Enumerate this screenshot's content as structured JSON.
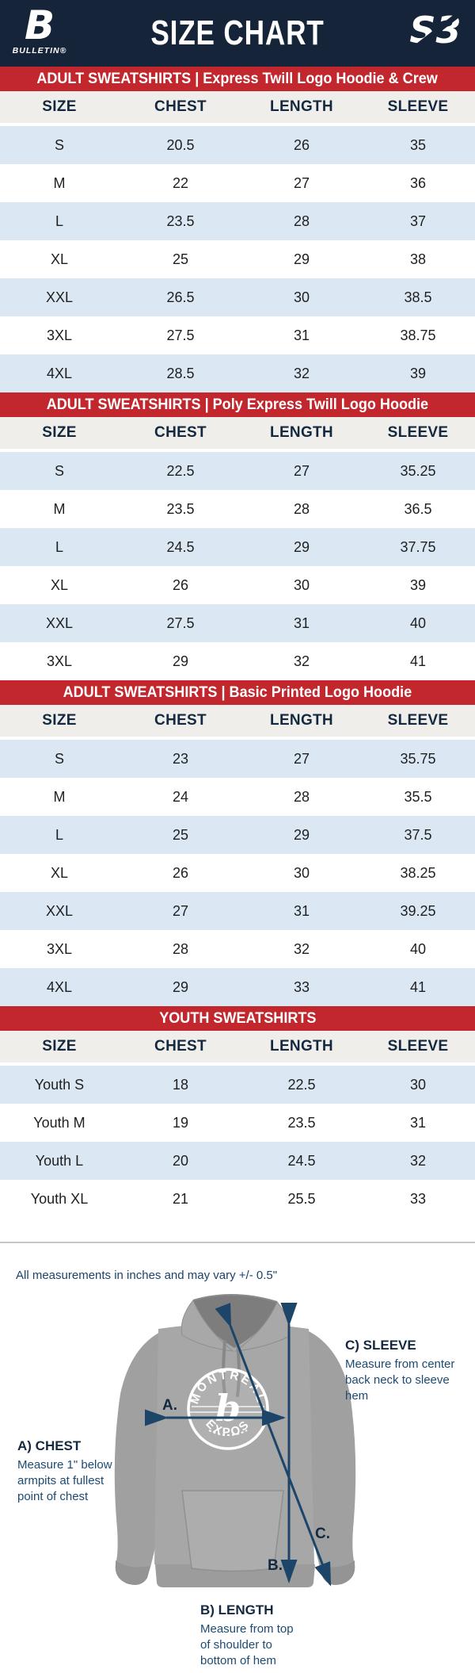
{
  "header": {
    "title": "SIZE CHART",
    "brand_left_mark": "B",
    "brand_left": "BULLETIN®",
    "brand_right": "S3"
  },
  "columns": [
    "SIZE",
    "CHEST",
    "LENGTH",
    "SLEEVE"
  ],
  "tables": [
    {
      "title": "ADULT SWEATSHIRTS | Express Twill Logo Hoodie & Crew",
      "rows": [
        [
          "S",
          "20.5",
          "26",
          "35"
        ],
        [
          "M",
          "22",
          "27",
          "36"
        ],
        [
          "L",
          "23.5",
          "28",
          "37"
        ],
        [
          "XL",
          "25",
          "29",
          "38"
        ],
        [
          "XXL",
          "26.5",
          "30",
          "38.5"
        ],
        [
          "3XL",
          "27.5",
          "31",
          "38.75"
        ],
        [
          "4XL",
          "28.5",
          "32",
          "39"
        ]
      ]
    },
    {
      "title": "ADULT SWEATSHIRTS | Poly Express Twill Logo Hoodie",
      "rows": [
        [
          "S",
          "22.5",
          "27",
          "35.25"
        ],
        [
          "M",
          "23.5",
          "28",
          "36.5"
        ],
        [
          "L",
          "24.5",
          "29",
          "37.75"
        ],
        [
          "XL",
          "26",
          "30",
          "39"
        ],
        [
          "XXL",
          "27.5",
          "31",
          "40"
        ],
        [
          "3XL",
          "29",
          "32",
          "41"
        ]
      ]
    },
    {
      "title": "ADULT SWEATSHIRTS | Basic Printed Logo Hoodie",
      "rows": [
        [
          "S",
          "23",
          "27",
          "35.75"
        ],
        [
          "M",
          "24",
          "28",
          "35.5"
        ],
        [
          "L",
          "25",
          "29",
          "37.5"
        ],
        [
          "XL",
          "26",
          "30",
          "38.25"
        ],
        [
          "XXL",
          "27",
          "31",
          "39.25"
        ],
        [
          "3XL",
          "28",
          "32",
          "40"
        ],
        [
          "4XL",
          "29",
          "33",
          "41"
        ]
      ]
    },
    {
      "title": "YOUTH SWEATSHIRTS",
      "rows": [
        [
          "Youth S",
          "18",
          "22.5",
          "30"
        ],
        [
          "Youth M",
          "19",
          "23.5",
          "31"
        ],
        [
          "Youth L",
          "20",
          "24.5",
          "32"
        ],
        [
          "Youth XL",
          "21",
          "25.5",
          "33"
        ]
      ]
    }
  ],
  "footnote": "All measurements in inches and may vary +/- 0.5\"",
  "diagram": {
    "logo_top": "MONTREAL",
    "logo_bottom": "EXPOS",
    "logo_center": "b",
    "labels": {
      "chest": {
        "letter": "A.",
        "heading": "A) CHEST",
        "body": "Measure 1\" below\narmpits at fullest\npoint of chest"
      },
      "length": {
        "letter": "B.",
        "heading": "B) LENGTH",
        "body": "Measure from top\nof shoulder to\nbottom of hem"
      },
      "sleeve": {
        "letter": "C.",
        "heading": "C) SLEEVE",
        "body": "Measure from center\nback neck to sleeve hem"
      }
    }
  },
  "colors": {
    "navy": "#16243a",
    "red": "#c3272e",
    "row_blue": "#dbe8f4",
    "header_gray": "#efeeeb",
    "label_navy": "#1d4a73",
    "arrow_navy": "#1c4569"
  }
}
